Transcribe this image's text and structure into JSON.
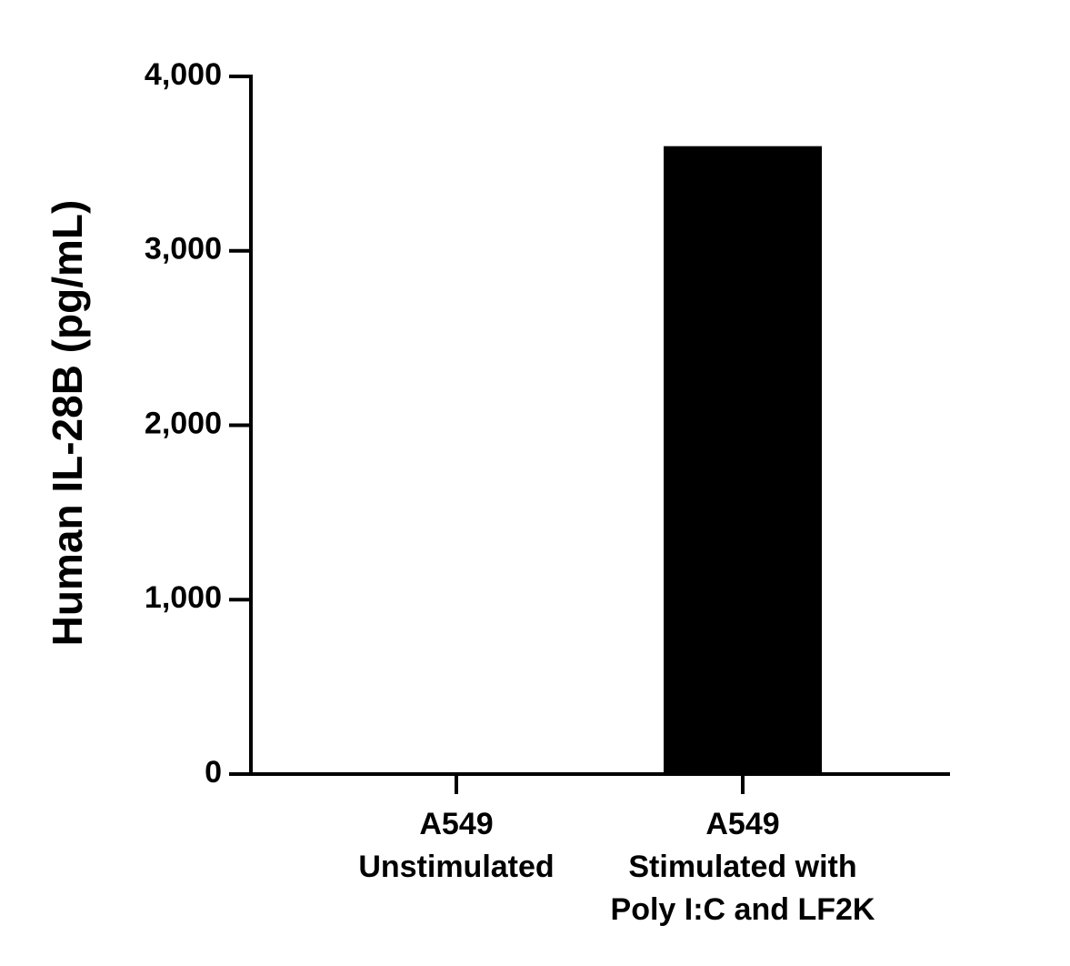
{
  "chart_data": {
    "type": "bar",
    "y_label": "Human IL-28B (pg/mL)",
    "categories": [
      [
        "A549",
        "Unstimulated"
      ],
      [
        "A549",
        "Stimulated with",
        "Poly I:C and LF2K"
      ]
    ],
    "values": [
      0,
      3600
    ],
    "color": "#000000",
    "ylim": [
      0,
      4000
    ],
    "yticks": [
      0,
      {
        "value": 1000,
        "label": "1,000"
      },
      {
        "value": 2000,
        "label": "2,000"
      },
      {
        "value": 3000,
        "label": "3,000"
      },
      {
        "value": 4000,
        "label": "4,000"
      }
    ],
    "grid": false
  }
}
